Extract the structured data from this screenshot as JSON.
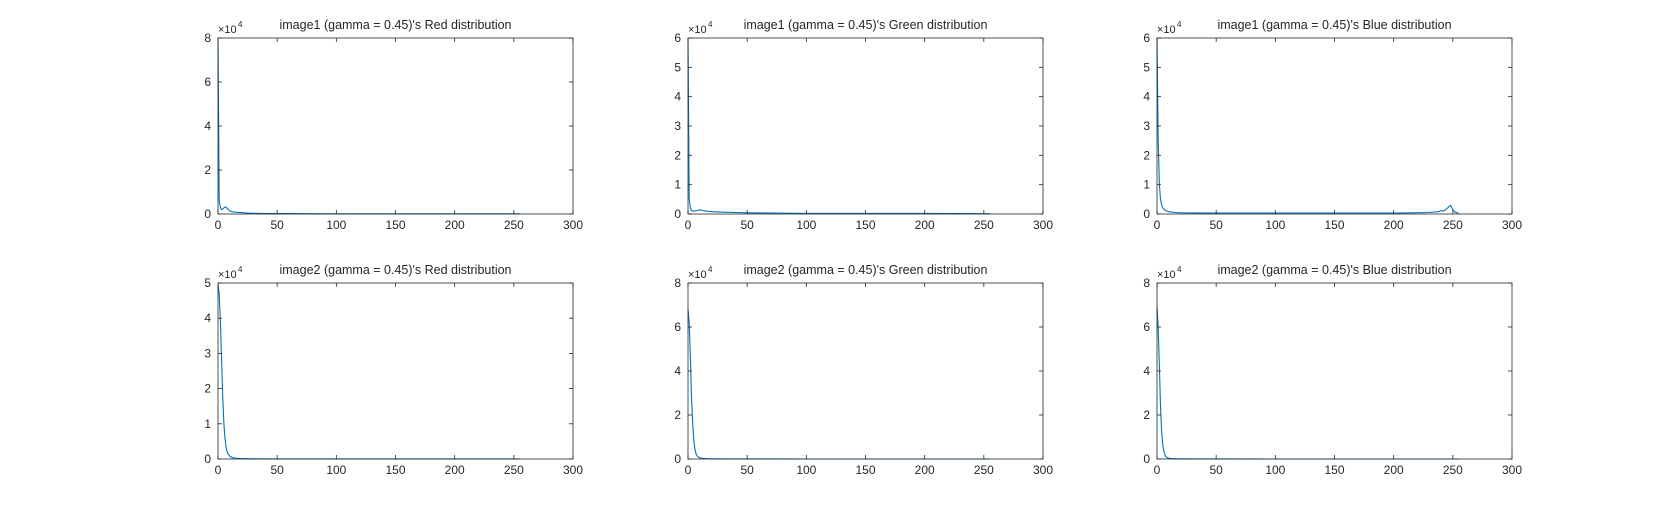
{
  "chart_data": [
    {
      "type": "line",
      "title": "image1 (gamma = 0.45)'s Red   distribution",
      "xlim": [
        0,
        300
      ],
      "xticks": [
        0,
        50,
        100,
        150,
        200,
        250,
        300
      ],
      "ylim": [
        0,
        8
      ],
      "yticks": [
        0,
        2,
        4,
        6,
        8
      ],
      "y_exponent_label": "×10",
      "y_exponent": "4",
      "line_color": "#0072BD",
      "grid": false,
      "x": [
        0,
        1,
        2,
        3,
        4,
        5,
        6,
        7,
        8,
        9,
        10,
        12,
        15,
        20,
        25,
        30,
        40,
        50,
        100,
        150,
        200,
        250,
        255
      ],
      "y": [
        8.0,
        0.6,
        0.3,
        0.2,
        0.22,
        0.28,
        0.32,
        0.3,
        0.24,
        0.18,
        0.14,
        0.1,
        0.08,
        0.06,
        0.04,
        0.03,
        0.02,
        0.02,
        0.01,
        0.01,
        0.01,
        0.01,
        0.01
      ]
    },
    {
      "type": "line",
      "title": "image1 (gamma = 0.45)'s Green distribution",
      "xlim": [
        0,
        300
      ],
      "xticks": [
        0,
        50,
        100,
        150,
        200,
        250,
        300
      ],
      "ylim": [
        0,
        6
      ],
      "yticks": [
        0,
        1,
        2,
        3,
        4,
        5,
        6
      ],
      "y_exponent_label": "×10",
      "y_exponent": "4",
      "line_color": "#0072BD",
      "grid": false,
      "x": [
        0,
        1,
        2,
        3,
        4,
        5,
        8,
        10,
        12,
        15,
        20,
        30,
        40,
        50,
        100,
        150,
        200,
        250,
        255
      ],
      "y": [
        6.0,
        0.5,
        0.2,
        0.12,
        0.1,
        0.1,
        0.12,
        0.15,
        0.12,
        0.1,
        0.08,
        0.06,
        0.05,
        0.04,
        0.02,
        0.02,
        0.02,
        0.01,
        0.01
      ]
    },
    {
      "type": "line",
      "title": "image1 (gamma = 0.45)'s Blue  distribution",
      "xlim": [
        0,
        300
      ],
      "xticks": [
        0,
        50,
        100,
        150,
        200,
        250,
        300
      ],
      "ylim": [
        0,
        6
      ],
      "yticks": [
        0,
        1,
        2,
        3,
        4,
        5,
        6
      ],
      "y_exponent_label": "×10",
      "y_exponent": "4",
      "line_color": "#0072BD",
      "grid": false,
      "x": [
        0,
        1,
        2,
        3,
        4,
        5,
        7,
        10,
        15,
        20,
        50,
        100,
        150,
        200,
        230,
        238,
        240,
        242,
        244,
        246,
        248,
        250,
        252,
        255
      ],
      "y": [
        6.0,
        2.5,
        1.0,
        0.5,
        0.3,
        0.2,
        0.12,
        0.08,
        0.05,
        0.04,
        0.03,
        0.03,
        0.03,
        0.03,
        0.05,
        0.08,
        0.12,
        0.1,
        0.15,
        0.22,
        0.3,
        0.15,
        0.06,
        0.02
      ]
    },
    {
      "type": "line",
      "title": "image2 (gamma = 0.45)'s Red   distribution",
      "xlim": [
        0,
        300
      ],
      "xticks": [
        0,
        50,
        100,
        150,
        200,
        250,
        300
      ],
      "ylim": [
        0,
        5
      ],
      "yticks": [
        0,
        1,
        2,
        3,
        4,
        5
      ],
      "y_exponent_label": "×10",
      "y_exponent": "4",
      "line_color": "#0072BD",
      "grid": false,
      "x": [
        0,
        1,
        2,
        3,
        4,
        5,
        6,
        7,
        8,
        10,
        12,
        15,
        20,
        30,
        50,
        100,
        150,
        200,
        250,
        255
      ],
      "y": [
        4.95,
        4.7,
        3.9,
        2.8,
        1.8,
        1.0,
        0.55,
        0.3,
        0.17,
        0.08,
        0.04,
        0.02,
        0.01,
        0.005,
        0.003,
        0.002,
        0.002,
        0.002,
        0.002,
        0.002
      ]
    },
    {
      "type": "line",
      "title": "image2 (gamma = 0.45)'s Green distribution",
      "xlim": [
        0,
        300
      ],
      "xticks": [
        0,
        50,
        100,
        150,
        200,
        250,
        300
      ],
      "ylim": [
        0,
        8
      ],
      "yticks": [
        0,
        2,
        4,
        6,
        8
      ],
      "y_exponent_label": "×10",
      "y_exponent": "4",
      "line_color": "#0072BD",
      "grid": false,
      "x": [
        0,
        1,
        2,
        3,
        4,
        5,
        6,
        7,
        8,
        10,
        12,
        15,
        20,
        30,
        50,
        100,
        150,
        200,
        250,
        255
      ],
      "y": [
        6.8,
        6.2,
        4.6,
        2.8,
        1.6,
        0.8,
        0.4,
        0.2,
        0.12,
        0.05,
        0.03,
        0.015,
        0.01,
        0.005,
        0.003,
        0.002,
        0.002,
        0.002,
        0.002,
        0.002
      ]
    },
    {
      "type": "line",
      "title": "image2 (gamma = 0.45)'s Blue  distribution",
      "xlim": [
        0,
        300
      ],
      "xticks": [
        0,
        50,
        100,
        150,
        200,
        250,
        300
      ],
      "ylim": [
        0,
        8
      ],
      "yticks": [
        0,
        2,
        4,
        6,
        8
      ],
      "y_exponent_label": "×10",
      "y_exponent": "4",
      "line_color": "#0072BD",
      "grid": false,
      "x": [
        0,
        1,
        2,
        3,
        4,
        5,
        6,
        7,
        8,
        10,
        12,
        15,
        20,
        30,
        50,
        100,
        150,
        200,
        250,
        255
      ],
      "y": [
        6.9,
        6.0,
        4.2,
        2.4,
        1.2,
        0.6,
        0.3,
        0.15,
        0.08,
        0.03,
        0.02,
        0.01,
        0.008,
        0.005,
        0.003,
        0.002,
        0.002,
        0.002,
        0.002,
        0.002
      ]
    }
  ]
}
